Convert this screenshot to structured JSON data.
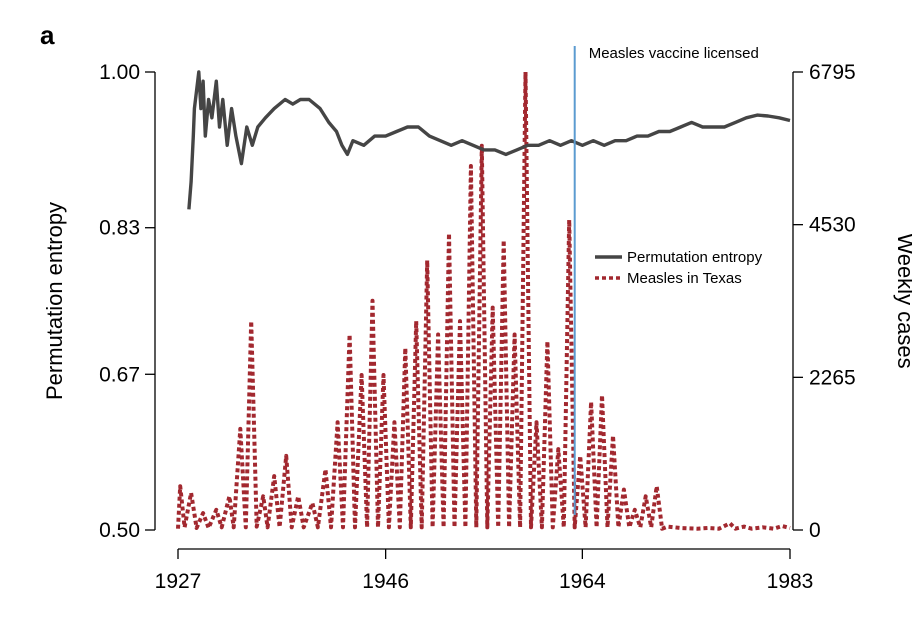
{
  "panel_label": "a",
  "chart_data": {
    "type": "line",
    "annotation": "Measles vaccine licensed",
    "vaccine_year": 1963.3,
    "x_axis": {
      "range": [
        1927,
        1983
      ],
      "ticks": [
        1927,
        1946,
        1964,
        1983
      ]
    },
    "y_left": {
      "label": "Permutation entropy",
      "range": [
        0.5,
        1.0
      ],
      "ticks": [
        "0.50",
        "0.67",
        "0.83",
        "1.00"
      ]
    },
    "y_right": {
      "label": "Weekly cases",
      "range": [
        0,
        6795
      ],
      "ticks": [
        "0",
        "2265",
        "4530",
        "6795"
      ]
    },
    "legend": {
      "placement": "center-right",
      "entries": [
        "Permutation entropy",
        "Measles in Texas"
      ]
    },
    "colors": {
      "entropy": "#454545",
      "cases": "#a2282f",
      "vaccine_line": "#5b9bd0"
    },
    "series": [
      {
        "name": "Permutation entropy",
        "axis": "left",
        "points": [
          [
            1928.0,
            0.85
          ],
          [
            1928.2,
            0.88
          ],
          [
            1928.4,
            0.93
          ],
          [
            1928.5,
            0.96
          ],
          [
            1928.7,
            0.98
          ],
          [
            1928.9,
            1.0
          ],
          [
            1929.1,
            0.96
          ],
          [
            1929.3,
            0.99
          ],
          [
            1929.5,
            0.93
          ],
          [
            1929.8,
            0.97
          ],
          [
            1930.1,
            0.95
          ],
          [
            1930.5,
            0.99
          ],
          [
            1930.8,
            0.94
          ],
          [
            1931.1,
            0.97
          ],
          [
            1931.5,
            0.92
          ],
          [
            1931.9,
            0.96
          ],
          [
            1932.3,
            0.93
          ],
          [
            1932.8,
            0.9
          ],
          [
            1933.3,
            0.94
          ],
          [
            1933.8,
            0.92
          ],
          [
            1934.3,
            0.94
          ],
          [
            1935.0,
            0.95
          ],
          [
            1935.8,
            0.96
          ],
          [
            1936.8,
            0.97
          ],
          [
            1937.5,
            0.965
          ],
          [
            1938.2,
            0.97
          ],
          [
            1939.0,
            0.97
          ],
          [
            1940.0,
            0.96
          ],
          [
            1940.8,
            0.945
          ],
          [
            1941.5,
            0.935
          ],
          [
            1942.0,
            0.92
          ],
          [
            1942.5,
            0.91
          ],
          [
            1943.0,
            0.925
          ],
          [
            1944.0,
            0.92
          ],
          [
            1945.0,
            0.93
          ],
          [
            1946.0,
            0.93
          ],
          [
            1947.0,
            0.935
          ],
          [
            1948.0,
            0.94
          ],
          [
            1949.0,
            0.94
          ],
          [
            1950.0,
            0.93
          ],
          [
            1951.0,
            0.925
          ],
          [
            1952.0,
            0.92
          ],
          [
            1953.0,
            0.925
          ],
          [
            1954.0,
            0.92
          ],
          [
            1955.0,
            0.915
          ],
          [
            1956.0,
            0.915
          ],
          [
            1957.0,
            0.91
          ],
          [
            1958.0,
            0.915
          ],
          [
            1959.0,
            0.92
          ],
          [
            1960.0,
            0.92
          ],
          [
            1961.0,
            0.925
          ],
          [
            1962.0,
            0.92
          ],
          [
            1963.0,
            0.925
          ],
          [
            1964.0,
            0.92
          ],
          [
            1965.0,
            0.925
          ],
          [
            1966.0,
            0.92
          ],
          [
            1967.0,
            0.925
          ],
          [
            1968.0,
            0.925
          ],
          [
            1969.0,
            0.93
          ],
          [
            1970.0,
            0.93
          ],
          [
            1971.0,
            0.935
          ],
          [
            1972.0,
            0.935
          ],
          [
            1973.0,
            0.94
          ],
          [
            1974.0,
            0.945
          ],
          [
            1975.0,
            0.94
          ],
          [
            1976.0,
            0.94
          ],
          [
            1977.0,
            0.94
          ],
          [
            1978.0,
            0.945
          ],
          [
            1979.0,
            0.95
          ],
          [
            1980.0,
            0.953
          ],
          [
            1981.0,
            0.952
          ],
          [
            1982.0,
            0.95
          ],
          [
            1983.0,
            0.947
          ]
        ]
      },
      {
        "name": "Measles in Texas",
        "axis": "right",
        "points": [
          [
            1927.0,
            20
          ],
          [
            1927.2,
            650
          ],
          [
            1927.6,
            40
          ],
          [
            1928.2,
            550
          ],
          [
            1928.7,
            30
          ],
          [
            1929.3,
            250
          ],
          [
            1929.8,
            30
          ],
          [
            1930.5,
            300
          ],
          [
            1931.0,
            40
          ],
          [
            1931.7,
            500
          ],
          [
            1932.1,
            40
          ],
          [
            1932.7,
            1500
          ],
          [
            1933.2,
            40
          ],
          [
            1933.7,
            3100
          ],
          [
            1934.2,
            50
          ],
          [
            1934.8,
            500
          ],
          [
            1935.2,
            40
          ],
          [
            1935.8,
            800
          ],
          [
            1936.3,
            40
          ],
          [
            1936.9,
            1100
          ],
          [
            1937.4,
            40
          ],
          [
            1938.0,
            500
          ],
          [
            1938.5,
            40
          ],
          [
            1939.3,
            400
          ],
          [
            1939.8,
            40
          ],
          [
            1940.5,
            900
          ],
          [
            1941.0,
            40
          ],
          [
            1941.6,
            1600
          ],
          [
            1942.1,
            40
          ],
          [
            1942.7,
            2900
          ],
          [
            1943.2,
            40
          ],
          [
            1943.8,
            2300
          ],
          [
            1944.3,
            40
          ],
          [
            1944.8,
            3400
          ],
          [
            1945.3,
            40
          ],
          [
            1945.8,
            2300
          ],
          [
            1946.3,
            40
          ],
          [
            1946.8,
            1600
          ],
          [
            1947.3,
            40
          ],
          [
            1947.8,
            2700
          ],
          [
            1948.3,
            40
          ],
          [
            1948.8,
            3100
          ],
          [
            1949.3,
            40
          ],
          [
            1949.8,
            4000
          ],
          [
            1950.3,
            40
          ],
          [
            1950.8,
            2900
          ],
          [
            1951.3,
            40
          ],
          [
            1951.8,
            4400
          ],
          [
            1952.3,
            40
          ],
          [
            1952.8,
            3100
          ],
          [
            1953.3,
            40
          ],
          [
            1953.8,
            5400
          ],
          [
            1954.3,
            40
          ],
          [
            1954.8,
            5700
          ],
          [
            1955.3,
            40
          ],
          [
            1955.8,
            3300
          ],
          [
            1956.3,
            40
          ],
          [
            1956.8,
            4300
          ],
          [
            1957.3,
            40
          ],
          [
            1957.8,
            2900
          ],
          [
            1958.3,
            40
          ],
          [
            1958.8,
            6795
          ],
          [
            1959.3,
            40
          ],
          [
            1959.8,
            1600
          ],
          [
            1960.3,
            40
          ],
          [
            1960.8,
            2800
          ],
          [
            1961.3,
            40
          ],
          [
            1961.8,
            1200
          ],
          [
            1962.3,
            40
          ],
          [
            1962.8,
            4600
          ],
          [
            1963.3,
            40
          ],
          [
            1963.8,
            1100
          ],
          [
            1964.3,
            40
          ],
          [
            1964.8,
            1900
          ],
          [
            1965.3,
            40
          ],
          [
            1965.8,
            2000
          ],
          [
            1966.3,
            40
          ],
          [
            1966.8,
            1400
          ],
          [
            1967.3,
            40
          ],
          [
            1967.8,
            600
          ],
          [
            1968.3,
            40
          ],
          [
            1968.8,
            300
          ],
          [
            1969.3,
            40
          ],
          [
            1969.8,
            500
          ],
          [
            1970.3,
            40
          ],
          [
            1970.8,
            650
          ],
          [
            1971.3,
            20
          ],
          [
            1971.8,
            50
          ],
          [
            1973.0,
            30
          ],
          [
            1974.5,
            20
          ],
          [
            1975.5,
            30
          ],
          [
            1976.5,
            20
          ],
          [
            1977.5,
            100
          ],
          [
            1978.0,
            20
          ],
          [
            1978.8,
            50
          ],
          [
            1979.5,
            20
          ],
          [
            1980.5,
            40
          ],
          [
            1981.5,
            20
          ],
          [
            1982.3,
            60
          ],
          [
            1983.0,
            30
          ]
        ]
      }
    ]
  }
}
